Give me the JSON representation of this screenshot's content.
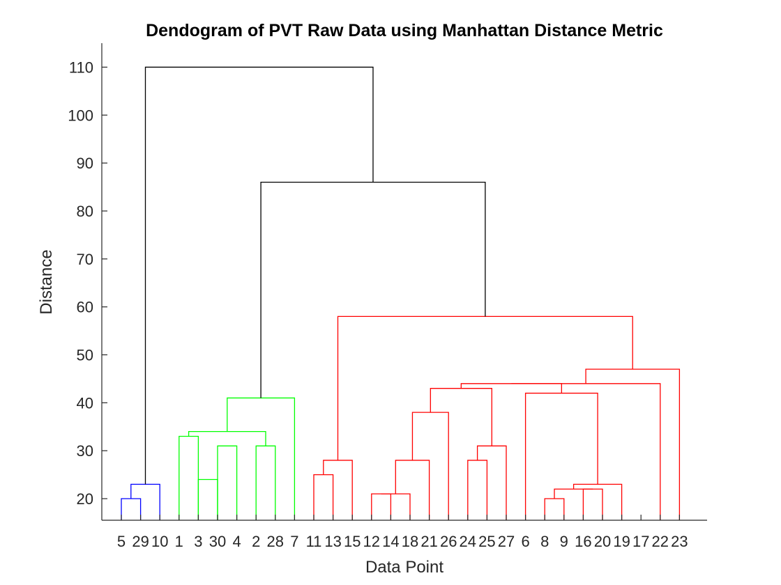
{
  "chart_data": {
    "type": "dendrogram",
    "title": "Dendogram of PVT Raw Data using Manhattan Distance Metric",
    "xlabel": "Data Point",
    "ylabel": "Distance",
    "ylim": [
      15.5,
      115
    ],
    "yticks": [
      20,
      30,
      40,
      50,
      60,
      70,
      80,
      90,
      100,
      110
    ],
    "leaf_order": [
      "5",
      "29",
      "10",
      "1",
      "3",
      "30",
      "4",
      "2",
      "28",
      "7",
      "11",
      "13",
      "15",
      "12",
      "14",
      "18",
      "21",
      "26",
      "24",
      "25",
      "27",
      "6",
      "8",
      "9",
      "16",
      "20",
      "19",
      "17",
      "22",
      "23"
    ],
    "colors": {
      "blue": "#0000ff",
      "green": "#00ff00",
      "red": "#ff0000",
      "black": "#000000"
    },
    "merges": [
      {
        "id": "m1",
        "left": "5",
        "right": "29",
        "height": 20,
        "color": "blue"
      },
      {
        "id": "m2",
        "left": "m1",
        "right": "10",
        "height": 23,
        "color": "blue"
      },
      {
        "id": "m3",
        "left": "1",
        "right": "3",
        "height": 33,
        "color": "green"
      },
      {
        "id": "m4",
        "left": "30",
        "right": "4",
        "height": 31,
        "color": "green"
      },
      {
        "id": "m5",
        "left": "3",
        "right": "30",
        "height": 24,
        "color": "green"
      },
      {
        "id": "m6",
        "left": "2",
        "right": "28",
        "height": 31,
        "color": "green"
      },
      {
        "id": "m7",
        "left": "m3",
        "right": "m6",
        "height": 34,
        "color": "green"
      },
      {
        "id": "m8",
        "left": "m7",
        "right": "7",
        "height": 41,
        "color": "green"
      },
      {
        "id": "m9",
        "left": "11",
        "right": "13",
        "height": 25,
        "color": "red"
      },
      {
        "id": "m10",
        "left": "m9",
        "right": "15",
        "height": 28,
        "color": "red"
      },
      {
        "id": "m11",
        "left": "12",
        "right": "14",
        "height": 21,
        "color": "red"
      },
      {
        "id": "m12",
        "left": "m11",
        "right": "18",
        "height": 21,
        "color": "red"
      },
      {
        "id": "m13",
        "left": "m12",
        "right": "21",
        "height": 28,
        "color": "red"
      },
      {
        "id": "m14",
        "left": "m13",
        "right": "26",
        "height": 38,
        "color": "red"
      },
      {
        "id": "m15",
        "left": "24",
        "right": "25",
        "height": 28,
        "color": "red"
      },
      {
        "id": "m16",
        "left": "m15",
        "right": "27",
        "height": 31,
        "color": "red"
      },
      {
        "id": "m17",
        "left": "m14",
        "right": "m16",
        "height": 43,
        "color": "red"
      },
      {
        "id": "m18",
        "left": "8",
        "right": "9",
        "height": 20,
        "color": "red"
      },
      {
        "id": "m19",
        "left": "16",
        "right": "20",
        "height": 22,
        "color": "red"
      },
      {
        "id": "m20",
        "left": "m18",
        "right": "m19",
        "height": 22,
        "color": "red"
      },
      {
        "id": "m21",
        "left": "m20",
        "right": "19",
        "height": 23,
        "color": "red"
      },
      {
        "id": "m22",
        "left": "6",
        "right": "m21",
        "height": 42,
        "color": "red"
      },
      {
        "id": "m23",
        "left": "m17",
        "right": "m22",
        "height": 44,
        "color": "red"
      },
      {
        "id": "m24",
        "left": "m23",
        "right": "22",
        "height": 44,
        "color": "red"
      },
      {
        "id": "m25",
        "left": "m24",
        "right": "23",
        "height": 47,
        "color": "red"
      },
      {
        "id": "m26",
        "left": "m10",
        "right": "m25",
        "height": 58,
        "color": "red"
      },
      {
        "id": "m27",
        "left": "m8",
        "right": "m26",
        "height": 86,
        "color": "black"
      },
      {
        "id": "m28",
        "left": "m2",
        "right": "m27",
        "height": 110,
        "color": "black"
      }
    ]
  }
}
